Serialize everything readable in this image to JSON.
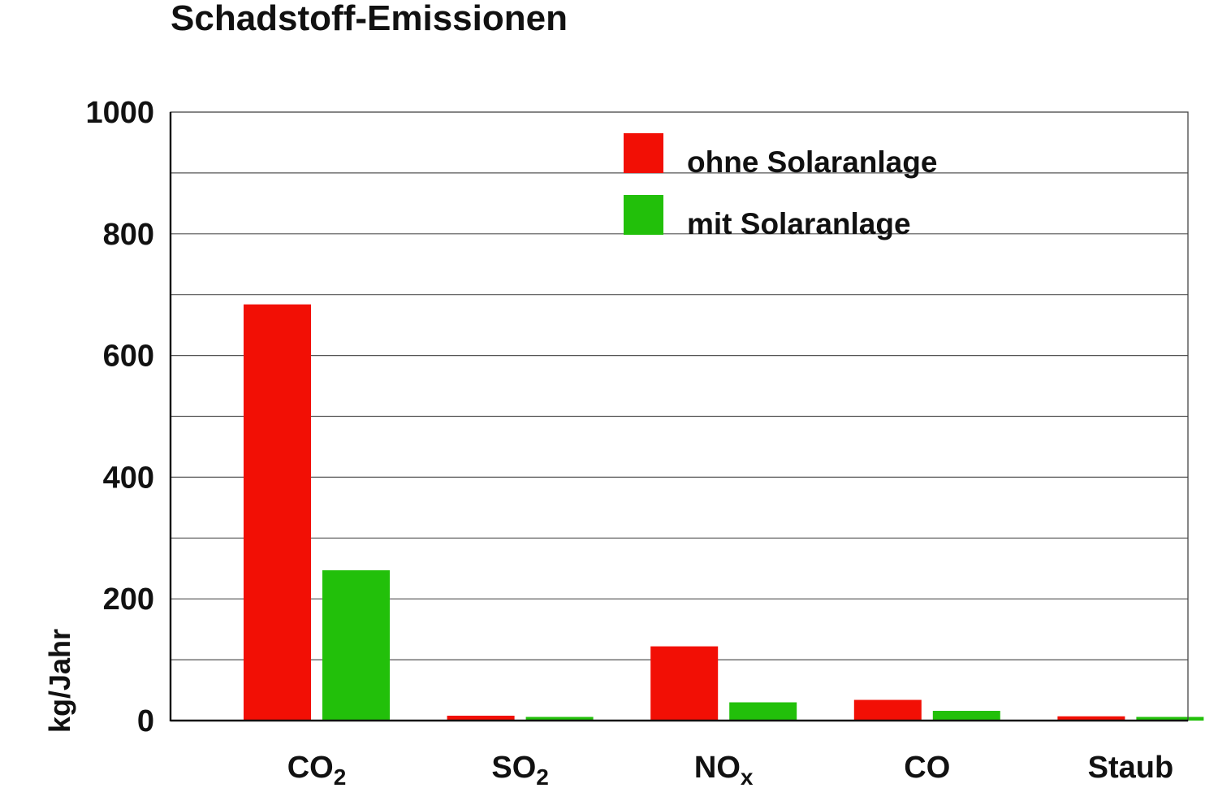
{
  "chart_data": {
    "type": "bar",
    "title": "Schadstoff-Emissionen",
    "xlabel": "",
    "ylabel": "kg/Jahr",
    "ylim": [
      0,
      1000
    ],
    "yticks": [
      0,
      200,
      400,
      600,
      800,
      1000
    ],
    "grid": true,
    "legend_position": "top-right",
    "categories": [
      {
        "base": "CO",
        "sub": "2"
      },
      {
        "base": "SO",
        "sub": "2"
      },
      {
        "base": "NO",
        "sub": "x"
      },
      {
        "base": "CO",
        "sub": ""
      },
      {
        "base": "Staub",
        "sub": ""
      }
    ],
    "series": [
      {
        "name": "ohne Solaranlage",
        "color": "#f20f05",
        "values": [
          684,
          8,
          122,
          34,
          7
        ]
      },
      {
        "name": "mit Solaranlage",
        "color": "#22c00a",
        "values": [
          247,
          6,
          30,
          16,
          6
        ]
      }
    ]
  }
}
